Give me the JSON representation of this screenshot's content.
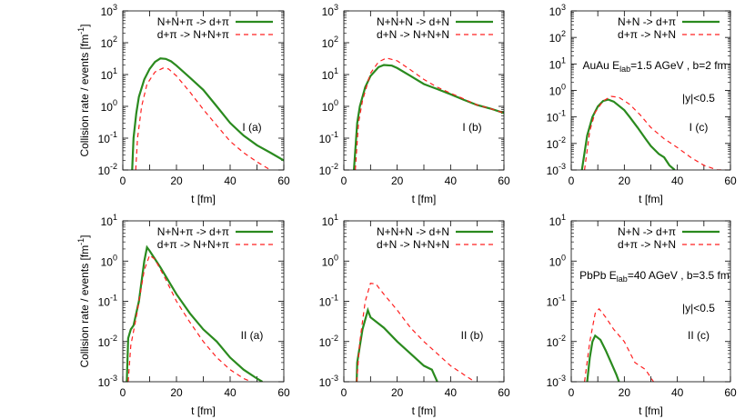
{
  "chart_data": [
    {
      "id": "Ia",
      "type": "line",
      "annotation": "I (a)",
      "ylabel": "Collision rate / events [fm^-1]",
      "xlabel": "t [fm]",
      "xlim": [
        0,
        60
      ],
      "ylim": [
        0.01,
        1000
      ],
      "yscale": "log",
      "legend": "top-right",
      "series": [
        {
          "name": "N+N+π -> d+π",
          "style": "solid",
          "color": "#2a8a1e",
          "x": [
            3.5,
            4,
            5,
            6,
            8,
            10,
            12,
            14,
            16,
            18,
            20,
            25,
            30,
            35,
            40,
            45,
            50,
            55,
            60
          ],
          "y": [
            0.01,
            0.1,
            0.6,
            2,
            7,
            15,
            25,
            32,
            31,
            26,
            19,
            8,
            3.3,
            1.0,
            0.3,
            0.12,
            0.06,
            0.035,
            0.02
          ]
        },
        {
          "name": "d+π -> N+N+π",
          "style": "dashed",
          "color": "#ff2020",
          "x": [
            4.8,
            5.5,
            7,
            9,
            12,
            15,
            17,
            20,
            25,
            30,
            35,
            40,
            45,
            50,
            55
          ],
          "y": [
            0.01,
            0.1,
            1,
            5,
            12,
            16,
            15,
            9,
            2.8,
            0.8,
            0.25,
            0.08,
            0.035,
            0.018,
            0.01
          ]
        }
      ]
    },
    {
      "id": "Ib",
      "type": "line",
      "annotation": "I (b)",
      "xlabel": "t [fm]",
      "xlim": [
        0,
        60
      ],
      "ylim": [
        0.01,
        1000
      ],
      "yscale": "log",
      "legend": "top-right",
      "series": [
        {
          "name": "N+N+N -> d+N",
          "style": "solid",
          "color": "#2a8a1e",
          "x": [
            3.8,
            5,
            6,
            8,
            10,
            13,
            15,
            18,
            20,
            25,
            30,
            35,
            40,
            45,
            50,
            55,
            60
          ],
          "y": [
            0.01,
            0.3,
            1,
            4,
            9,
            17,
            20,
            19,
            16,
            9,
            5,
            3.5,
            2.4,
            1.6,
            1.1,
            0.85,
            0.62
          ]
        },
        {
          "name": "d+N -> N+N+N",
          "style": "dashed",
          "color": "#ff2020",
          "x": [
            4.3,
            5.5,
            7,
            10,
            13,
            16,
            20,
            25,
            30,
            35,
            40,
            45,
            50,
            55,
            60
          ],
          "y": [
            0.01,
            0.3,
            1.5,
            11,
            25,
            33,
            27,
            14,
            7,
            4,
            2.6,
            1.7,
            1.1,
            0.85,
            0.62
          ]
        }
      ]
    },
    {
      "id": "Ic",
      "type": "line",
      "annotation": "I (c)",
      "xlabel": "t [fm]",
      "system": "AuAu E",
      "system_sub": "lab",
      "system_rest": "=1.5 AGeV , b=2 fm",
      "cut": "|y|<0.5",
      "xlim": [
        0,
        60
      ],
      "ylim": [
        0.001,
        1000
      ],
      "yscale": "log",
      "legend": "top-right",
      "series": [
        {
          "name": "N+N -> d+π",
          "style": "solid",
          "color": "#2a8a1e",
          "x": [
            4,
            6,
            8,
            10,
            12,
            14,
            16,
            20,
            22,
            25,
            28,
            30,
            33,
            35,
            37,
            39
          ],
          "y": [
            0.001,
            0.02,
            0.1,
            0.25,
            0.4,
            0.45,
            0.38,
            0.18,
            0.1,
            0.04,
            0.015,
            0.008,
            0.004,
            0.003,
            0.0015,
            0.001
          ]
        },
        {
          "name": "d+π -> N+N",
          "style": "dashed",
          "color": "#ff2020",
          "x": [
            5,
            7,
            9,
            12,
            15,
            18,
            22,
            26,
            30,
            35,
            40,
            45,
            50,
            55,
            58
          ],
          "y": [
            0.001,
            0.03,
            0.15,
            0.4,
            0.6,
            0.55,
            0.3,
            0.12,
            0.04,
            0.015,
            0.007,
            0.003,
            0.0015,
            0.001,
            0.001
          ]
        }
      ]
    },
    {
      "id": "IIa",
      "type": "line",
      "annotation": "II (a)",
      "ylabel": "Collision rate / events [fm^-1]",
      "xlabel": "t [fm]",
      "xlim": [
        0,
        60
      ],
      "ylim": [
        0.001,
        10
      ],
      "yscale": "log",
      "legend": "top-right",
      "series": [
        {
          "name": "N+N+π -> d+π",
          "style": "solid",
          "color": "#2a8a1e",
          "x": [
            1.5,
            2,
            3,
            4,
            6,
            8,
            9,
            10,
            14,
            20,
            25,
            30,
            35,
            40,
            45,
            50,
            52
          ],
          "y": [
            0.001,
            0.012,
            0.02,
            0.025,
            0.1,
            1,
            2.2,
            1.8,
            0.7,
            0.15,
            0.05,
            0.02,
            0.01,
            0.004,
            0.002,
            0.0012,
            0.001
          ]
        },
        {
          "name": "d+π -> N+N+π",
          "style": "dashed",
          "color": "#ff2020",
          "x": [
            2,
            3,
            5,
            8,
            10,
            12,
            16,
            20,
            25,
            30,
            35,
            40,
            45,
            48
          ],
          "y": [
            0.001,
            0.008,
            0.04,
            0.6,
            1.4,
            1.1,
            0.35,
            0.1,
            0.03,
            0.01,
            0.004,
            0.002,
            0.0012,
            0.001
          ]
        }
      ]
    },
    {
      "id": "IIb",
      "type": "line",
      "annotation": "II (b)",
      "xlabel": "t [fm]",
      "xlim": [
        0,
        60
      ],
      "ylim": [
        0.001,
        10
      ],
      "yscale": "log",
      "legend": "top-right",
      "series": [
        {
          "name": "N+N+N -> d+N",
          "style": "solid",
          "color": "#2a8a1e",
          "x": [
            4.8,
            5,
            7,
            9,
            10,
            15,
            20,
            25,
            30,
            33,
            35
          ],
          "y": [
            0.001,
            0.003,
            0.02,
            0.06,
            0.04,
            0.022,
            0.01,
            0.005,
            0.0025,
            0.002,
            0.001
          ]
        },
        {
          "name": "d+N -> N+N+N",
          "style": "dashed",
          "color": "#ff2020",
          "x": [
            4.8,
            6,
            8,
            10,
            12,
            15,
            20,
            25,
            30,
            35,
            40,
            45,
            49
          ],
          "y": [
            0.001,
            0.01,
            0.1,
            0.28,
            0.27,
            0.15,
            0.06,
            0.022,
            0.01,
            0.005,
            0.0025,
            0.0015,
            0.001
          ]
        }
      ]
    },
    {
      "id": "IIc",
      "type": "line",
      "annotation": "II (c)",
      "xlabel": "t [fm]",
      "system": "PbPb E",
      "system_sub": "lab",
      "system_rest": "=40 AGeV , b=3.5 fm",
      "cut": "|y|<0.5",
      "xlim": [
        0,
        60
      ],
      "ylim": [
        0.001,
        10
      ],
      "yscale": "log",
      "legend": "top-right",
      "series": [
        {
          "name": "N+N -> d+π",
          "style": "solid",
          "color": "#2a8a1e",
          "x": [
            6,
            7,
            8,
            9,
            11,
            13,
            15,
            17,
            18
          ],
          "y": [
            0.001,
            0.004,
            0.01,
            0.014,
            0.011,
            0.006,
            0.003,
            0.0015,
            0.001
          ]
        },
        {
          "name": "d+π -> N+N",
          "style": "dashed",
          "color": "#ff2020",
          "x": [
            5,
            7,
            9,
            10.5,
            13,
            16,
            20,
            24,
            28,
            31
          ],
          "y": [
            0.001,
            0.01,
            0.05,
            0.065,
            0.04,
            0.02,
            0.01,
            0.003,
            0.002,
            0.001
          ]
        }
      ]
    }
  ]
}
